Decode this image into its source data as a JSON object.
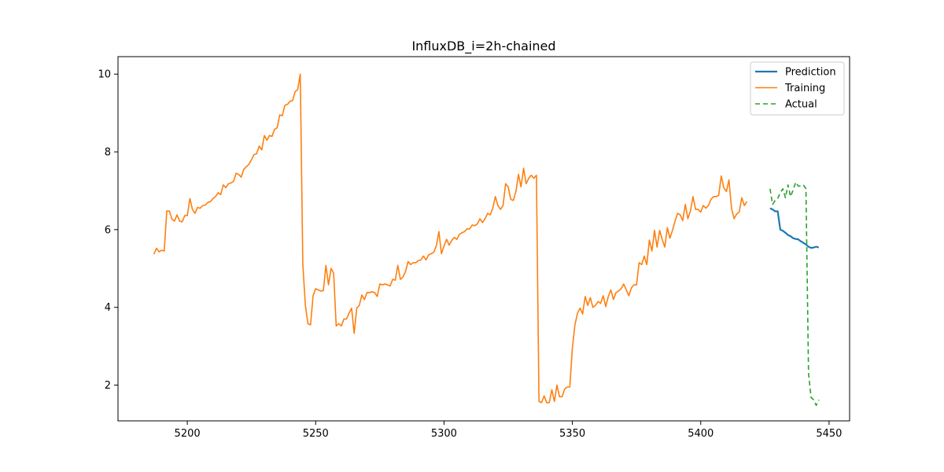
{
  "chart_data": {
    "type": "line",
    "title": "InfluxDB_i=2h-chained",
    "xlabel": "",
    "ylabel": "",
    "xlim": [
      5173,
      5458
    ],
    "ylim": [
      1.08,
      10.45
    ],
    "xticks": [
      5200,
      5250,
      5300,
      5350,
      5400,
      5450
    ],
    "yticks": [
      2,
      4,
      6,
      8,
      10
    ],
    "grid": false,
    "legend_placement": "top-right",
    "series": [
      {
        "name": "Prediction",
        "color": "#1f77b4",
        "style": "solid",
        "points": [
          [
            5427,
            6.55
          ],
          [
            5428,
            6.52
          ],
          [
            5429,
            6.47
          ],
          [
            5430,
            6.47
          ],
          [
            5431,
            6.0
          ],
          [
            5432,
            5.97
          ],
          [
            5433,
            5.92
          ],
          [
            5434,
            5.86
          ],
          [
            5435,
            5.83
          ],
          [
            5436,
            5.78
          ],
          [
            5437,
            5.76
          ],
          [
            5438,
            5.75
          ],
          [
            5439,
            5.7
          ],
          [
            5440,
            5.66
          ],
          [
            5441,
            5.62
          ],
          [
            5442,
            5.56
          ],
          [
            5443,
            5.53
          ],
          [
            5444,
            5.54
          ],
          [
            5445,
            5.56
          ],
          [
            5446,
            5.54
          ]
        ]
      },
      {
        "name": "Training",
        "color": "#ff7f0e",
        "style": "solid",
        "points": [
          [
            5187,
            5.37
          ],
          [
            5188,
            5.52
          ],
          [
            5189,
            5.43
          ],
          [
            5190,
            5.47
          ],
          [
            5191,
            5.45
          ],
          [
            5192,
            6.48
          ],
          [
            5193,
            6.48
          ],
          [
            5194,
            6.27
          ],
          [
            5195,
            6.22
          ],
          [
            5196,
            6.38
          ],
          [
            5197,
            6.22
          ],
          [
            5198,
            6.2
          ],
          [
            5199,
            6.36
          ],
          [
            5200,
            6.36
          ],
          [
            5201,
            6.8
          ],
          [
            5202,
            6.52
          ],
          [
            5203,
            6.42
          ],
          [
            5204,
            6.57
          ],
          [
            5205,
            6.55
          ],
          [
            5206,
            6.62
          ],
          [
            5207,
            6.63
          ],
          [
            5208,
            6.7
          ],
          [
            5209,
            6.72
          ],
          [
            5210,
            6.8
          ],
          [
            5211,
            6.85
          ],
          [
            5212,
            6.95
          ],
          [
            5213,
            6.9
          ],
          [
            5214,
            7.15
          ],
          [
            5215,
            7.08
          ],
          [
            5216,
            7.18
          ],
          [
            5217,
            7.2
          ],
          [
            5218,
            7.24
          ],
          [
            5219,
            7.45
          ],
          [
            5220,
            7.42
          ],
          [
            5221,
            7.35
          ],
          [
            5222,
            7.55
          ],
          [
            5223,
            7.62
          ],
          [
            5224,
            7.68
          ],
          [
            5225,
            7.8
          ],
          [
            5226,
            7.93
          ],
          [
            5227,
            7.95
          ],
          [
            5228,
            8.15
          ],
          [
            5229,
            8.05
          ],
          [
            5230,
            8.42
          ],
          [
            5231,
            8.3
          ],
          [
            5232,
            8.42
          ],
          [
            5233,
            8.4
          ],
          [
            5234,
            8.58
          ],
          [
            5235,
            8.62
          ],
          [
            5236,
            8.95
          ],
          [
            5237,
            8.93
          ],
          [
            5238,
            9.2
          ],
          [
            5239,
            9.22
          ],
          [
            5240,
            9.3
          ],
          [
            5241,
            9.32
          ],
          [
            5242,
            9.55
          ],
          [
            5243,
            9.6
          ],
          [
            5244,
            10.0
          ],
          [
            5245,
            5.1
          ],
          [
            5246,
            4.05
          ],
          [
            5247,
            3.58
          ],
          [
            5248,
            3.55
          ],
          [
            5249,
            4.3
          ],
          [
            5250,
            4.48
          ],
          [
            5251,
            4.45
          ],
          [
            5252,
            4.42
          ],
          [
            5253,
            4.43
          ],
          [
            5254,
            5.08
          ],
          [
            5255,
            4.58
          ],
          [
            5256,
            5.0
          ],
          [
            5257,
            4.88
          ],
          [
            5258,
            3.52
          ],
          [
            5259,
            3.58
          ],
          [
            5260,
            3.52
          ],
          [
            5261,
            3.7
          ],
          [
            5262,
            3.7
          ],
          [
            5263,
            3.85
          ],
          [
            5264,
            3.98
          ],
          [
            5265,
            3.33
          ],
          [
            5266,
            3.98
          ],
          [
            5267,
            4.05
          ],
          [
            5268,
            4.32
          ],
          [
            5269,
            4.2
          ],
          [
            5270,
            4.38
          ],
          [
            5271,
            4.38
          ],
          [
            5272,
            4.4
          ],
          [
            5273,
            4.38
          ],
          [
            5274,
            4.28
          ],
          [
            5275,
            4.6
          ],
          [
            5276,
            4.58
          ],
          [
            5277,
            4.6
          ],
          [
            5278,
            4.58
          ],
          [
            5279,
            4.55
          ],
          [
            5280,
            4.72
          ],
          [
            5281,
            4.7
          ],
          [
            5282,
            5.08
          ],
          [
            5283,
            4.72
          ],
          [
            5284,
            4.78
          ],
          [
            5285,
            4.92
          ],
          [
            5286,
            5.18
          ],
          [
            5287,
            5.1
          ],
          [
            5288,
            5.15
          ],
          [
            5289,
            5.15
          ],
          [
            5290,
            5.2
          ],
          [
            5291,
            5.22
          ],
          [
            5292,
            5.32
          ],
          [
            5293,
            5.22
          ],
          [
            5294,
            5.35
          ],
          [
            5295,
            5.38
          ],
          [
            5296,
            5.42
          ],
          [
            5297,
            5.58
          ],
          [
            5298,
            5.95
          ],
          [
            5299,
            5.38
          ],
          [
            5300,
            5.58
          ],
          [
            5301,
            5.75
          ],
          [
            5302,
            5.6
          ],
          [
            5303,
            5.72
          ],
          [
            5304,
            5.8
          ],
          [
            5305,
            5.75
          ],
          [
            5306,
            5.88
          ],
          [
            5307,
            5.92
          ],
          [
            5308,
            5.95
          ],
          [
            5309,
            6.02
          ],
          [
            5310,
            6.02
          ],
          [
            5311,
            6.12
          ],
          [
            5312,
            6.1
          ],
          [
            5313,
            6.15
          ],
          [
            5314,
            6.28
          ],
          [
            5315,
            6.18
          ],
          [
            5316,
            6.28
          ],
          [
            5317,
            6.42
          ],
          [
            5318,
            6.38
          ],
          [
            5319,
            6.55
          ],
          [
            5320,
            6.85
          ],
          [
            5321,
            6.62
          ],
          [
            5322,
            6.52
          ],
          [
            5323,
            6.62
          ],
          [
            5324,
            7.18
          ],
          [
            5325,
            7.1
          ],
          [
            5326,
            6.78
          ],
          [
            5327,
            6.75
          ],
          [
            5328,
            6.98
          ],
          [
            5329,
            7.42
          ],
          [
            5330,
            7.1
          ],
          [
            5331,
            7.58
          ],
          [
            5332,
            7.18
          ],
          [
            5333,
            7.32
          ],
          [
            5334,
            7.4
          ],
          [
            5335,
            7.32
          ],
          [
            5336,
            7.4
          ],
          [
            5337,
            1.58
          ],
          [
            5338,
            1.55
          ],
          [
            5339,
            1.72
          ],
          [
            5340,
            1.55
          ],
          [
            5341,
            1.55
          ],
          [
            5342,
            1.88
          ],
          [
            5343,
            1.58
          ],
          [
            5344,
            2.0
          ],
          [
            5345,
            1.7
          ],
          [
            5346,
            1.7
          ],
          [
            5347,
            1.9
          ],
          [
            5348,
            1.95
          ],
          [
            5349,
            1.95
          ],
          [
            5350,
            2.95
          ],
          [
            5351,
            3.55
          ],
          [
            5352,
            3.85
          ],
          [
            5353,
            3.98
          ],
          [
            5354,
            3.83
          ],
          [
            5355,
            4.28
          ],
          [
            5356,
            4.05
          ],
          [
            5357,
            4.25
          ],
          [
            5358,
            4.0
          ],
          [
            5359,
            4.05
          ],
          [
            5360,
            4.15
          ],
          [
            5361,
            4.1
          ],
          [
            5362,
            4.3
          ],
          [
            5363,
            4.02
          ],
          [
            5364,
            4.28
          ],
          [
            5365,
            4.45
          ],
          [
            5366,
            4.2
          ],
          [
            5367,
            4.38
          ],
          [
            5368,
            4.42
          ],
          [
            5369,
            4.48
          ],
          [
            5370,
            4.6
          ],
          [
            5371,
            4.45
          ],
          [
            5372,
            4.3
          ],
          [
            5373,
            4.5
          ],
          [
            5374,
            4.58
          ],
          [
            5375,
            4.58
          ],
          [
            5376,
            5.15
          ],
          [
            5377,
            5.1
          ],
          [
            5378,
            5.32
          ],
          [
            5379,
            5.1
          ],
          [
            5380,
            5.73
          ],
          [
            5381,
            5.45
          ],
          [
            5382,
            5.98
          ],
          [
            5383,
            5.55
          ],
          [
            5384,
            5.98
          ],
          [
            5385,
            5.75
          ],
          [
            5386,
            5.55
          ],
          [
            5387,
            6.05
          ],
          [
            5388,
            5.78
          ],
          [
            5389,
            5.98
          ],
          [
            5390,
            6.22
          ],
          [
            5391,
            6.42
          ],
          [
            5392,
            6.38
          ],
          [
            5393,
            6.23
          ],
          [
            5394,
            6.65
          ],
          [
            5395,
            6.28
          ],
          [
            5396,
            6.48
          ],
          [
            5397,
            6.85
          ],
          [
            5398,
            6.52
          ],
          [
            5399,
            6.52
          ],
          [
            5400,
            6.45
          ],
          [
            5401,
            6.62
          ],
          [
            5402,
            6.55
          ],
          [
            5403,
            6.62
          ],
          [
            5404,
            6.78
          ],
          [
            5405,
            6.85
          ],
          [
            5406,
            6.85
          ],
          [
            5407,
            6.88
          ],
          [
            5408,
            7.38
          ],
          [
            5409,
            7.08
          ],
          [
            5410,
            6.98
          ],
          [
            5411,
            7.28
          ],
          [
            5412,
            6.55
          ],
          [
            5413,
            6.28
          ],
          [
            5414,
            6.4
          ],
          [
            5415,
            6.45
          ],
          [
            5416,
            6.82
          ],
          [
            5417,
            6.62
          ],
          [
            5418,
            6.72
          ]
        ]
      },
      {
        "name": "Actual",
        "color": "#2ca02c",
        "style": "dashed",
        "points": [
          [
            5427,
            7.05
          ],
          [
            5428,
            6.65
          ],
          [
            5429,
            6.75
          ],
          [
            5430,
            6.8
          ],
          [
            5431,
            6.95
          ],
          [
            5432,
            7.05
          ],
          [
            5433,
            6.82
          ],
          [
            5434,
            7.15
          ],
          [
            5435,
            6.85
          ],
          [
            5436,
            7.02
          ],
          [
            5437,
            7.22
          ],
          [
            5438,
            7.12
          ],
          [
            5439,
            7.12
          ],
          [
            5440,
            7.15
          ],
          [
            5441,
            7.05
          ],
          [
            5442,
            2.3
          ],
          [
            5443,
            1.68
          ],
          [
            5444,
            1.62
          ],
          [
            5445,
            1.48
          ],
          [
            5446,
            1.62
          ]
        ]
      }
    ]
  }
}
